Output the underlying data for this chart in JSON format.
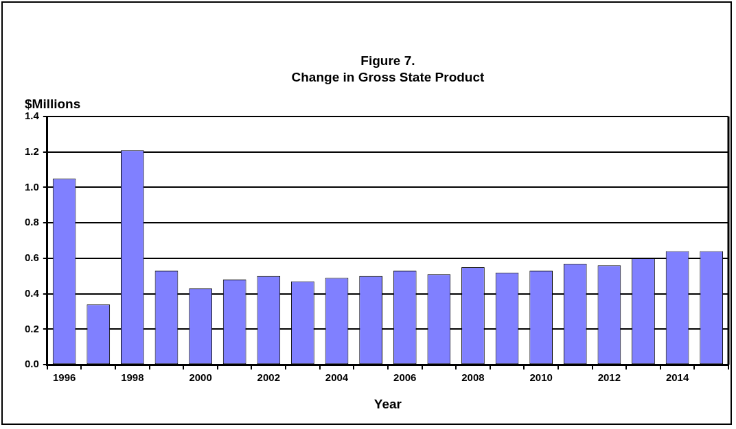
{
  "chart_data": {
    "type": "bar",
    "title": "Figure 7.\nChange in Gross State Product",
    "xlabel": "Year",
    "ylabel": "$Millions",
    "categories": [
      "1996",
      null,
      "1998",
      null,
      "2000",
      null,
      "2002",
      null,
      "2004",
      null,
      "2006",
      null,
      "2008",
      null,
      "2010",
      null,
      "2012",
      null,
      "2014",
      null
    ],
    "values": [
      1.05,
      0.34,
      1.21,
      0.53,
      0.43,
      0.48,
      0.5,
      0.47,
      0.49,
      0.5,
      0.53,
      0.51,
      0.55,
      0.52,
      0.53,
      0.57,
      0.56,
      0.6,
      0.64,
      0.64
    ],
    "color": "#8080ff",
    "ylim": [
      0,
      1.4
    ],
    "yticks": [
      {
        "value": 0,
        "label": "0.0"
      },
      0.2,
      0.4,
      0.6,
      0.8,
      {
        "value": 1,
        "label": "1.0"
      },
      1.2,
      1.4
    ],
    "grid": "y",
    "legend": false
  }
}
